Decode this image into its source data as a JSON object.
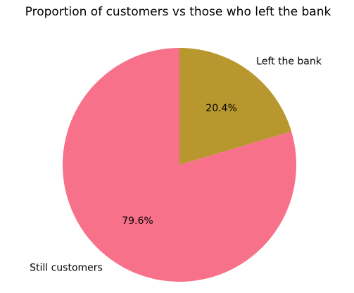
{
  "chart_data": {
    "type": "pie",
    "title": "Proportion of customers vs those who left the bank",
    "slices": [
      {
        "label": "Left the bank",
        "value": 20.4,
        "pct_label": "20.4%",
        "color": "#b9972f"
      },
      {
        "label": "Still customers",
        "value": 79.6,
        "pct_label": "79.6%",
        "color": "#f7718a"
      }
    ],
    "start_angle_deg": 90,
    "direction": "clockwise",
    "legend": "none"
  }
}
